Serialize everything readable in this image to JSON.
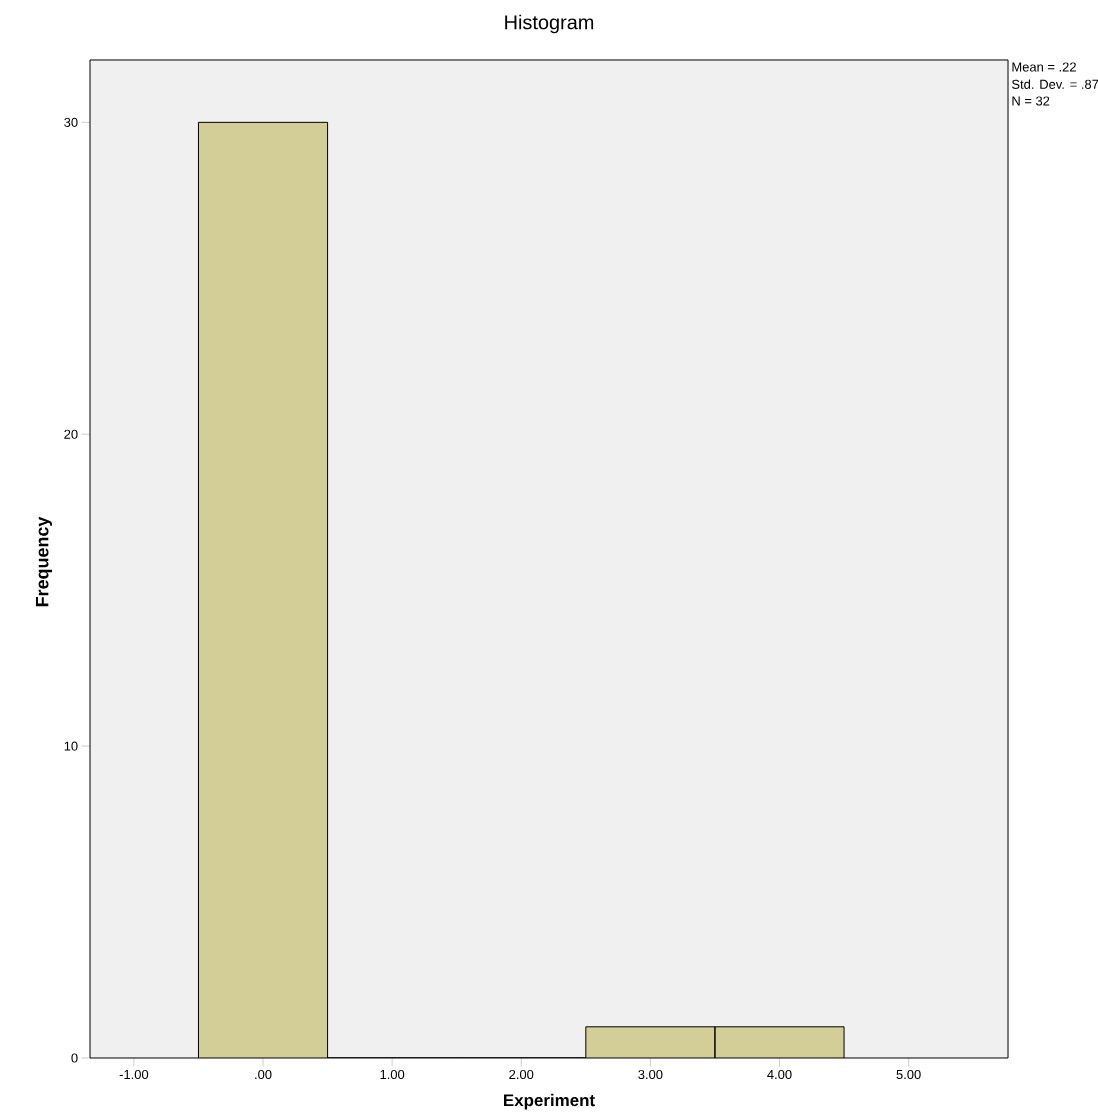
{
  "chart_data": {
    "type": "histogram",
    "title": "Histogram",
    "xlabel": "Experiment",
    "ylabel": "Frequency",
    "annotations": [
      "Mean = .22",
      "Std. Dev. = .87",
      "N = 32"
    ],
    "bins": [
      -0.5,
      0.5,
      1.5,
      2.5,
      3.5,
      4.5
    ],
    "values": [
      30,
      0,
      0,
      1,
      1
    ],
    "color": "#d3ce97",
    "xlim": [
      -1.34,
      5.77
    ],
    "ylim": [
      0,
      32
    ],
    "xticks": [
      {
        "value": -1,
        "label": "-1.00"
      },
      {
        "value": 0,
        "label": ".00"
      },
      {
        "value": 1,
        "label": "1.00"
      },
      {
        "value": 2,
        "label": "2.00"
      },
      {
        "value": 3,
        "label": "3.00"
      },
      {
        "value": 4,
        "label": "4.00"
      },
      {
        "value": 5,
        "label": "5.00"
      }
    ],
    "yticks": [
      0,
      10,
      20,
      30
    ]
  }
}
